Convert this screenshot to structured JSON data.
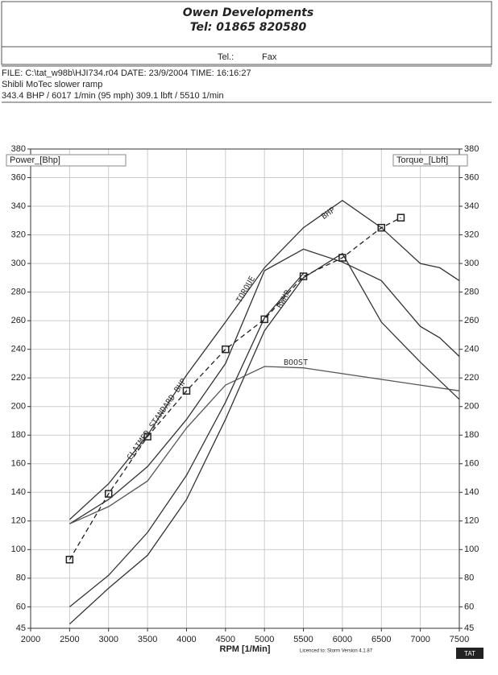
{
  "header": {
    "company": "Owen Developments",
    "phone": "Tel: 01865 820580",
    "tel_label": "Tel.:",
    "fax_label": "Fax",
    "file_line": "FILE: C:\\tat_w98b\\HJI734.r04  DATE: 23/9/2004  TIME: 16:16:27",
    "run_name": "Shibli MoTec slower ramp",
    "summary": "343.4 BHP / 6017 1/min (95 mph)    309.1 lbft / 5510 1/min"
  },
  "chart_data": {
    "type": "line",
    "xlabel": "RPM  [1/Min]",
    "ylabel": "Power_[Bhp]",
    "y2label": "Torque_[Lbft]",
    "footer_note": "Licenced to: Storm   Version 4.1.87",
    "logo": "TAT",
    "xlim": [
      2000,
      7500
    ],
    "xticks": [
      2000,
      2500,
      3000,
      3500,
      4000,
      4500,
      5000,
      5500,
      6000,
      6500,
      7000,
      7500
    ],
    "ylim": [
      45,
      380
    ],
    "yticks": [
      45,
      60,
      80,
      100,
      120,
      140,
      160,
      180,
      200,
      220,
      240,
      260,
      280,
      300,
      320,
      340,
      360,
      380
    ],
    "y2lim": [
      45,
      380
    ],
    "y2ticks": [
      45,
      60,
      80,
      100,
      120,
      140,
      160,
      180,
      200,
      220,
      240,
      260,
      280,
      300,
      320,
      340,
      360,
      380
    ],
    "grid": true,
    "series": [
      {
        "name": "BHP",
        "color": "#333333",
        "x": [
          2500,
          3000,
          3500,
          4000,
          4500,
          5000,
          5500,
          6000,
          6500,
          7000,
          7250,
          7500
        ],
        "values": [
          121,
          146,
          180,
          222,
          259,
          297,
          325,
          344,
          325,
          300,
          297,
          288
        ]
      },
      {
        "name": "TORQUE",
        "color": "#333333",
        "axis": "y2",
        "x": [
          2500,
          3000,
          3500,
          4000,
          4500,
          5000,
          5500,
          6000,
          6500,
          7000,
          7250,
          7500
        ],
        "values": [
          118,
          135,
          158,
          191,
          230,
          295,
          310,
          301,
          288,
          256,
          248,
          235
        ]
      },
      {
        "name": "RWHP",
        "color": "#333333",
        "x": [
          2500,
          3000,
          3500,
          4000,
          4500,
          5000,
          5500,
          6000,
          6500,
          7000,
          7500
        ],
        "values": [
          48,
          73,
          96,
          135,
          191,
          253,
          290,
          307,
          259,
          231,
          205
        ]
      },
      {
        "color": "#333333",
        "axis": "y2",
        "x": [
          2500,
          3000,
          3500,
          4000,
          4500,
          5000,
          5500
        ],
        "values": [
          60,
          82,
          112,
          152,
          203,
          262,
          293
        ]
      },
      {
        "name": "BOOST",
        "color": "#555555",
        "x": [
          2500,
          3000,
          3500,
          4000,
          4500,
          5000,
          5500,
          6000,
          6500,
          7000,
          7500
        ],
        "values": [
          118,
          130,
          148,
          185,
          215,
          228,
          227,
          223,
          219,
          215,
          211
        ]
      },
      {
        "name": "CLAIMED STANDARD BHP",
        "color": "#222222",
        "dashed": true,
        "markers": true,
        "x": [
          2500,
          3000,
          3500,
          4000,
          4500,
          5000,
          5500,
          6000,
          6500,
          6750
        ],
        "values": [
          93,
          139,
          179,
          211,
          240,
          261,
          291,
          304,
          325,
          332
        ]
      }
    ]
  }
}
